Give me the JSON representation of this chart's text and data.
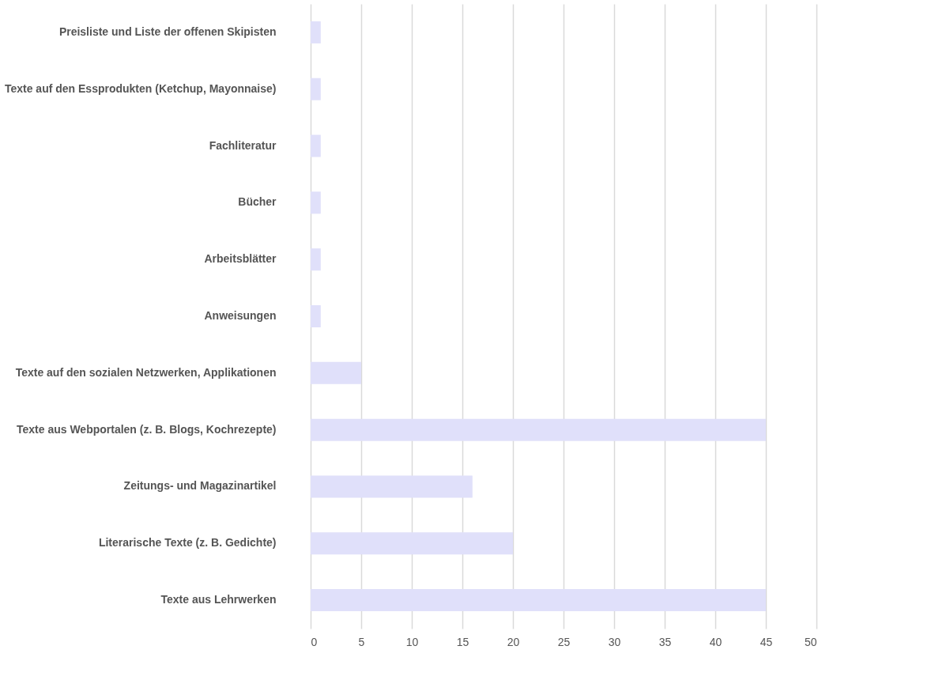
{
  "chart_data": {
    "type": "bar",
    "orientation": "horizontal",
    "categories": [
      "Preisliste und Liste der offenen Skipisten",
      "Texte auf den Essprodukten (Ketchup, Mayonnaise)",
      "Fachliteratur",
      "Bücher",
      "Arbeitsblätter",
      "Anweisungen",
      "Texte auf den sozialen Netzwerken, Applikationen",
      "Texte aus Webportalen (z. B. Blogs, Kochrezepte)",
      "Zeitungs- und Magazinartikel",
      "Literarische Texte (z. B. Gedichte)",
      "Texte aus Lehrwerken"
    ],
    "values": [
      1,
      1,
      1,
      1,
      1,
      1,
      5,
      45,
      16,
      20,
      45
    ],
    "color": "#e0e0fa",
    "xlim": [
      0,
      50
    ],
    "xticks": [
      0,
      5,
      10,
      15,
      20,
      25,
      30,
      35,
      40,
      45,
      50
    ],
    "grid": "x"
  }
}
